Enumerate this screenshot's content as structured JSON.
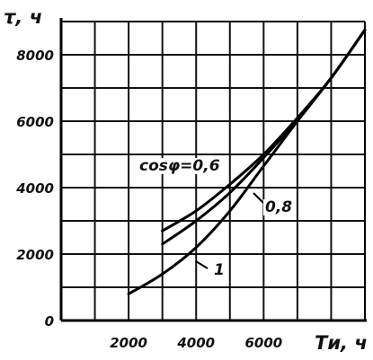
{
  "chart_data": {
    "type": "line",
    "title": "",
    "xlabel": "Tи, ч",
    "ylabel": "τ, ч",
    "xlim": [
      0,
      9000
    ],
    "ylim": [
      0,
      9000
    ],
    "x_ticks": [
      {
        "value": 2000,
        "label": "2000"
      },
      {
        "value": 4000,
        "label": "4000"
      },
      {
        "value": 6000,
        "label": "6000"
      }
    ],
    "y_ticks": [
      {
        "value": 0,
        "label": "0"
      },
      {
        "value": 2000,
        "label": "2000"
      },
      {
        "value": 4000,
        "label": "4000"
      },
      {
        "value": 6000,
        "label": "6000"
      },
      {
        "value": 8000,
        "label": "8000"
      }
    ],
    "grid": true,
    "grid_step": 1000,
    "series": [
      {
        "name": "cosφ=0,6",
        "x": [
          3000,
          4000,
          5000,
          6000,
          7000,
          8000,
          9000
        ],
        "y": [
          2700,
          3300,
          4100,
          5000,
          6100,
          7300,
          8750
        ]
      },
      {
        "name": "0,8",
        "x": [
          3000,
          4000,
          5000,
          6000,
          7000,
          8000,
          9000
        ],
        "y": [
          2300,
          3000,
          3850,
          4900,
          6050,
          7300,
          8750
        ]
      },
      {
        "name": "1",
        "x": [
          2000,
          3000,
          4000,
          5000,
          6000,
          7000,
          8000,
          9000
        ],
        "y": [
          800,
          1400,
          2200,
          3300,
          4650,
          6000,
          7300,
          8750
        ]
      }
    ]
  }
}
